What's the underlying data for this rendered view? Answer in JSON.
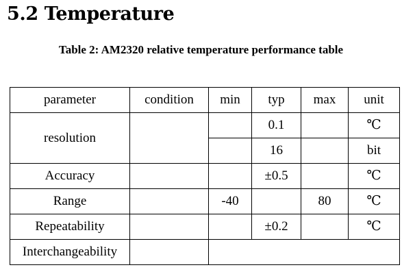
{
  "section": {
    "title": "5.2 Temperature"
  },
  "caption": "Table 2: AM2320 relative temperature performance table",
  "table": {
    "headers": {
      "parameter": "parameter",
      "condition": "condition",
      "min": "min",
      "typ": "typ",
      "max": "max",
      "unit": "unit"
    },
    "resolution": {
      "label": "resolution",
      "row1": {
        "typ": "0.1",
        "unit": "℃"
      },
      "row2": {
        "typ": "16",
        "unit": "bit"
      }
    },
    "accuracy": {
      "label": "Accuracy",
      "typ": "±0.5",
      "unit": "℃"
    },
    "range": {
      "label": "Range",
      "min": "-40",
      "max": "80",
      "unit": "℃"
    },
    "repeatability": {
      "label": "Repeatability",
      "typ": "±0.2",
      "unit": "℃"
    },
    "interchangeability": {
      "label": "Interchangeability"
    }
  }
}
